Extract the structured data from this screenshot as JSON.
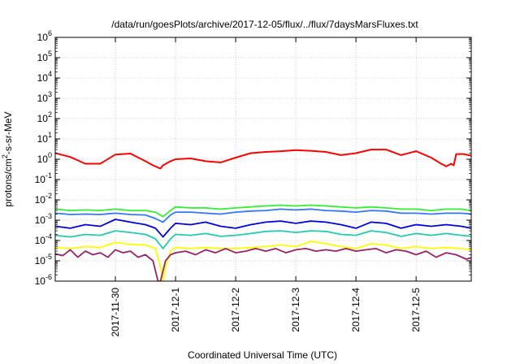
{
  "chart_data": {
    "type": "line",
    "title": "/data/run/goesPlots/archive/2017-12-05/flux/../flux/7daysMarsFluxes.txt",
    "xlabel": "Coordinated Universal Time (UTC)",
    "ylabel": {
      "base": "protons/cm",
      "sup": "2",
      "rest": "-s-sr-MeV"
    },
    "yscale": "log",
    "ylim": [
      1e-06,
      1000000.0
    ],
    "y_ticks": [
      {
        "value": 1e-06,
        "base": "10",
        "exp": "-6"
      },
      {
        "value": 1e-05,
        "base": "10",
        "exp": "-5"
      },
      {
        "value": 0.0001,
        "base": "10",
        "exp": "-4"
      },
      {
        "value": 0.001,
        "base": "10",
        "exp": "-3"
      },
      {
        "value": 0.01,
        "base": "10",
        "exp": "-2"
      },
      {
        "value": 0.1,
        "base": "10",
        "exp": "-1"
      },
      {
        "value": 1.0,
        "base": "10",
        "exp": "0"
      },
      {
        "value": 10.0,
        "base": "10",
        "exp": "1"
      },
      {
        "value": 100.0,
        "base": "10",
        "exp": "2"
      },
      {
        "value": 1000.0,
        "base": "10",
        "exp": "3"
      },
      {
        "value": 10000.0,
        "base": "10",
        "exp": "4"
      },
      {
        "value": 100000.0,
        "base": "10",
        "exp": "5"
      },
      {
        "value": 1000000.0,
        "base": "10",
        "exp": "6"
      }
    ],
    "xlim": [
      "2017-11-29",
      "2017-12-05 22:00"
    ],
    "x_ticks": [
      {
        "value": "2017-11-30",
        "label": "2017-11-30"
      },
      {
        "value": "2017-12-01",
        "label": "2017-12-1"
      },
      {
        "value": "2017-12-02",
        "label": "2017-12-2"
      },
      {
        "value": "2017-12-03",
        "label": "2017-12-3"
      },
      {
        "value": "2017-12-04",
        "label": "2017-12-4"
      },
      {
        "value": "2017-12-05",
        "label": "2017-12-5"
      }
    ],
    "grid": true,
    "legend": "none",
    "series": [
      {
        "color": "#ff0000",
        "x": [
          "2017-11-29 00:00",
          "2017-11-29 06:00",
          "2017-11-29 12:00",
          "2017-11-29 18:00",
          "2017-11-30 00:00",
          "2017-11-30 06:00",
          "2017-11-30 12:00",
          "2017-11-30 15:00",
          "2017-11-30 18:00",
          "2017-11-30 19:00",
          "2017-11-30 22:00",
          "2017-12-01 00:00",
          "2017-12-01 06:00",
          "2017-12-01 12:00",
          "2017-12-01 18:00",
          "2017-12-02 00:00",
          "2017-12-02 06:00",
          "2017-12-02 12:00",
          "2017-12-02 18:00",
          "2017-12-03 00:00",
          "2017-12-03 06:00",
          "2017-12-03 12:00",
          "2017-12-03 18:00",
          "2017-12-04 00:00",
          "2017-12-04 06:00",
          "2017-12-04 12:00",
          "2017-12-04 18:00",
          "2017-12-05 00:00",
          "2017-12-05 06:00",
          "2017-12-05 10:00",
          "2017-12-05 12:00",
          "2017-12-05 14:00",
          "2017-12-05 15:00",
          "2017-12-05 16:00",
          "2017-12-05 19:00",
          "2017-12-05 22:00"
        ],
        "y": [
          2.0,
          1.3,
          0.6,
          0.6,
          1.7,
          1.9,
          0.8,
          0.5,
          0.35,
          0.5,
          0.8,
          1.0,
          1.1,
          0.8,
          0.7,
          1.2,
          2.0,
          2.3,
          2.5,
          2.8,
          2.6,
          2.3,
          1.6,
          2.0,
          3.0,
          3.0,
          1.6,
          2.5,
          1.2,
          0.6,
          0.45,
          0.6,
          0.5,
          1.8,
          1.8,
          1.5
        ]
      },
      {
        "color": "#33ee33",
        "x": [
          "2017-11-29 00:00",
          "2017-11-29 06:00",
          "2017-11-29 12:00",
          "2017-11-29 18:00",
          "2017-11-30 00:00",
          "2017-11-30 06:00",
          "2017-11-30 12:00",
          "2017-11-30 16:00",
          "2017-11-30 19:00",
          "2017-11-30 22:00",
          "2017-12-01 00:00",
          "2017-12-01 06:00",
          "2017-12-01 12:00",
          "2017-12-01 18:00",
          "2017-12-02 00:00",
          "2017-12-02 06:00",
          "2017-12-02 12:00",
          "2017-12-02 18:00",
          "2017-12-03 00:00",
          "2017-12-03 06:00",
          "2017-12-03 12:00",
          "2017-12-03 18:00",
          "2017-12-04 00:00",
          "2017-12-04 06:00",
          "2017-12-04 12:00",
          "2017-12-04 18:00",
          "2017-12-05 00:00",
          "2017-12-05 06:00",
          "2017-12-05 12:00",
          "2017-12-05 18:00",
          "2017-12-05 22:00"
        ],
        "y": [
          0.0035,
          0.003,
          0.0032,
          0.003,
          0.0035,
          0.003,
          0.003,
          0.0025,
          0.0015,
          0.003,
          0.0045,
          0.004,
          0.004,
          0.0035,
          0.004,
          0.0045,
          0.005,
          0.0055,
          0.005,
          0.0055,
          0.005,
          0.0045,
          0.004,
          0.0045,
          0.004,
          0.0035,
          0.0035,
          0.003,
          0.0035,
          0.0035,
          0.003
        ]
      },
      {
        "color": "#3377ff",
        "x": [
          "2017-11-29 00:00",
          "2017-11-29 06:00",
          "2017-11-29 12:00",
          "2017-11-29 18:00",
          "2017-11-30 00:00",
          "2017-11-30 06:00",
          "2017-11-30 12:00",
          "2017-11-30 16:00",
          "2017-11-30 19:00",
          "2017-11-30 22:00",
          "2017-12-01 00:00",
          "2017-12-01 06:00",
          "2017-12-01 12:00",
          "2017-12-01 18:00",
          "2017-12-02 00:00",
          "2017-12-02 06:00",
          "2017-12-02 12:00",
          "2017-12-02 18:00",
          "2017-12-03 00:00",
          "2017-12-03 06:00",
          "2017-12-03 12:00",
          "2017-12-03 18:00",
          "2017-12-04 00:00",
          "2017-12-04 06:00",
          "2017-12-04 12:00",
          "2017-12-04 18:00",
          "2017-12-05 00:00",
          "2017-12-05 06:00",
          "2017-12-05 12:00",
          "2017-12-05 18:00",
          "2017-12-05 22:00"
        ],
        "y": [
          0.0022,
          0.0019,
          0.002,
          0.0019,
          0.0022,
          0.0019,
          0.0018,
          0.0012,
          0.0008,
          0.0018,
          0.0025,
          0.0025,
          0.0022,
          0.002,
          0.0025,
          0.0028,
          0.003,
          0.0035,
          0.0032,
          0.0035,
          0.003,
          0.0028,
          0.0025,
          0.003,
          0.0028,
          0.0022,
          0.0022,
          0.002,
          0.0022,
          0.0022,
          0.002
        ]
      },
      {
        "color": "#0000dd",
        "x": [
          "2017-11-29 00:00",
          "2017-11-29 06:00",
          "2017-11-29 12:00",
          "2017-11-29 18:00",
          "2017-11-30 00:00",
          "2017-11-30 06:00",
          "2017-11-30 12:00",
          "2017-11-30 16:00",
          "2017-11-30 19:00",
          "2017-11-30 22:00",
          "2017-12-01 00:00",
          "2017-12-01 06:00",
          "2017-12-01 12:00",
          "2017-12-01 18:00",
          "2017-12-02 00:00",
          "2017-12-02 06:00",
          "2017-12-02 12:00",
          "2017-12-02 18:00",
          "2017-12-03 00:00",
          "2017-12-03 06:00",
          "2017-12-03 12:00",
          "2017-12-03 18:00",
          "2017-12-04 00:00",
          "2017-12-04 06:00",
          "2017-12-04 12:00",
          "2017-12-04 18:00",
          "2017-12-05 00:00",
          "2017-12-05 06:00",
          "2017-12-05 12:00",
          "2017-12-05 18:00",
          "2017-12-05 22:00"
        ],
        "y": [
          0.0005,
          0.0004,
          0.0006,
          0.0005,
          0.0011,
          0.0008,
          0.0006,
          0.0004,
          0.00015,
          0.0004,
          0.0007,
          0.0006,
          0.0008,
          0.0005,
          0.0004,
          0.0006,
          0.0008,
          0.0009,
          0.0007,
          0.0009,
          0.0008,
          0.0006,
          0.0004,
          0.0008,
          0.0007,
          0.0004,
          0.0006,
          0.0005,
          0.0006,
          0.0005,
          0.0004
        ]
      },
      {
        "color": "#22ccaa",
        "x": [
          "2017-11-29 00:00",
          "2017-11-29 06:00",
          "2017-11-29 12:00",
          "2017-11-29 18:00",
          "2017-11-30 00:00",
          "2017-11-30 06:00",
          "2017-11-30 12:00",
          "2017-11-30 16:00",
          "2017-11-30 19:00",
          "2017-11-30 22:00",
          "2017-12-01 00:00",
          "2017-12-01 06:00",
          "2017-12-01 12:00",
          "2017-12-01 18:00",
          "2017-12-02 00:00",
          "2017-12-02 06:00",
          "2017-12-02 12:00",
          "2017-12-02 18:00",
          "2017-12-03 00:00",
          "2017-12-03 06:00",
          "2017-12-03 12:00",
          "2017-12-03 18:00",
          "2017-12-04 00:00",
          "2017-12-04 06:00",
          "2017-12-04 12:00",
          "2017-12-04 18:00",
          "2017-12-05 00:00",
          "2017-12-05 06:00",
          "2017-12-05 12:00",
          "2017-12-05 18:00",
          "2017-12-05 22:00"
        ],
        "y": [
          0.00018,
          0.00015,
          0.0002,
          0.00018,
          0.0003,
          0.00025,
          0.0002,
          0.00012,
          4e-05,
          0.00012,
          0.0002,
          0.00018,
          0.00022,
          0.00016,
          0.00018,
          0.00022,
          0.00028,
          0.0003,
          0.00025,
          0.0003,
          0.00028,
          0.0002,
          0.00018,
          0.0003,
          0.00025,
          0.00016,
          0.00022,
          0.00018,
          0.00022,
          0.00018,
          0.00016
        ]
      },
      {
        "color": "#ffff00",
        "x": [
          "2017-11-29 00:00",
          "2017-11-29 06:00",
          "2017-11-29 12:00",
          "2017-11-29 18:00",
          "2017-11-30 00:00",
          "2017-11-30 06:00",
          "2017-11-30 12:00",
          "2017-11-30 16:00",
          "2017-11-30 18:00",
          "2017-11-30 19:00",
          "2017-11-30 20:00",
          "2017-11-30 22:00",
          "2017-12-01 00:00",
          "2017-12-01 06:00",
          "2017-12-01 12:00",
          "2017-12-01 18:00",
          "2017-12-02 00:00",
          "2017-12-02 06:00",
          "2017-12-02 12:00",
          "2017-12-02 18:00",
          "2017-12-03 00:00",
          "2017-12-03 06:00",
          "2017-12-03 12:00",
          "2017-12-03 18:00",
          "2017-12-04 00:00",
          "2017-12-04 06:00",
          "2017-12-04 12:00",
          "2017-12-04 18:00",
          "2017-12-05 00:00",
          "2017-12-05 06:00",
          "2017-12-05 12:00",
          "2017-12-05 18:00",
          "2017-12-05 22:00"
        ],
        "y": [
          4.5e-05,
          4e-05,
          5e-05,
          4.5e-05,
          8e-05,
          6.5e-05,
          6e-05,
          4e-05,
          5e-06,
          1e-06,
          5e-06,
          3e-05,
          4.5e-05,
          4e-05,
          4.5e-05,
          4e-05,
          4e-05,
          4.5e-05,
          5e-05,
          6e-05,
          5e-05,
          9e-05,
          7e-05,
          5e-05,
          4e-05,
          7e-05,
          6e-05,
          4e-05,
          5e-05,
          4e-05,
          4.5e-05,
          4e-05,
          3.5e-05
        ]
      },
      {
        "color": "#992266",
        "x": [
          "2017-11-29 00:00",
          "2017-11-29 03:00",
          "2017-11-29 06:00",
          "2017-11-29 09:00",
          "2017-11-29 12:00",
          "2017-11-29 15:00",
          "2017-11-29 18:00",
          "2017-11-29 21:00",
          "2017-11-30 00:00",
          "2017-11-30 03:00",
          "2017-11-30 06:00",
          "2017-11-30 09:00",
          "2017-11-30 12:00",
          "2017-11-30 15:00",
          "2017-11-30 17:00",
          "2017-11-30 18:00",
          "2017-11-30 20:00",
          "2017-11-30 22:00",
          "2017-12-01 00:00",
          "2017-12-01 04:00",
          "2017-12-01 08:00",
          "2017-12-01 12:00",
          "2017-12-01 16:00",
          "2017-12-01 20:00",
          "2017-12-02 00:00",
          "2017-12-02 04:00",
          "2017-12-02 08:00",
          "2017-12-02 12:00",
          "2017-12-02 16:00",
          "2017-12-02 20:00",
          "2017-12-03 00:00",
          "2017-12-03 04:00",
          "2017-12-03 08:00",
          "2017-12-03 12:00",
          "2017-12-03 16:00",
          "2017-12-03 20:00",
          "2017-12-04 00:00",
          "2017-12-04 04:00",
          "2017-12-04 08:00",
          "2017-12-04 12:00",
          "2017-12-04 16:00",
          "2017-12-04 20:00",
          "2017-12-05 00:00",
          "2017-12-05 04:00",
          "2017-12-05 08:00",
          "2017-12-05 12:00",
          "2017-12-05 16:00",
          "2017-12-05 20:00",
          "2017-12-05 22:00"
        ],
        "y": [
          2.2e-05,
          1.8e-05,
          3.5e-05,
          1.5e-05,
          3e-05,
          2e-05,
          2.5e-05,
          1.5e-05,
          3.5e-05,
          2.5e-05,
          3e-05,
          1.5e-05,
          2e-05,
          1e-05,
          1e-06,
          1e-06,
          1e-05,
          2e-05,
          2.5e-05,
          3e-05,
          2e-05,
          3.5e-05,
          2.5e-05,
          4e-05,
          2.5e-05,
          3e-05,
          4e-05,
          3e-05,
          4e-05,
          2.5e-05,
          3.5e-05,
          4e-05,
          3e-05,
          3.5e-05,
          3e-05,
          4e-05,
          3e-05,
          3.5e-05,
          4e-05,
          2.5e-05,
          3.5e-05,
          3e-05,
          2e-05,
          3e-05,
          1.5e-05,
          2.5e-05,
          2e-05,
          1.2e-05,
          1.4e-05
        ]
      }
    ]
  }
}
